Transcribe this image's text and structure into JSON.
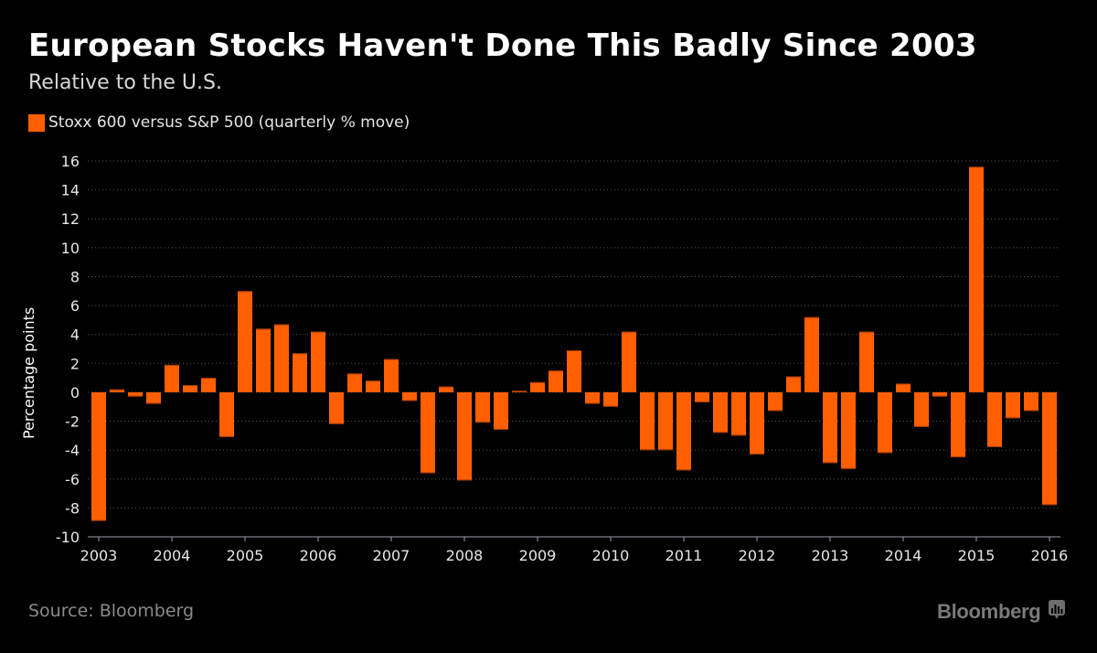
{
  "header": {
    "title": "European Stocks Haven't Done This Badly Since 2003",
    "subtitle": "Relative to the U.S."
  },
  "footer": {
    "source": "Source: Bloomberg",
    "brand": "Bloomberg",
    "brand_icon": "bloomberg-chart-bubble-icon"
  },
  "colors": {
    "bar": "#ff5f00",
    "background": "#000000",
    "grid": "#555555",
    "axis": "#9aa0aa"
  },
  "chart_data": {
    "type": "bar",
    "title": "European Stocks Haven't Done This Badly Since 2003",
    "subtitle": "Relative to the U.S.",
    "xlabel": "",
    "ylabel": "Percentage points",
    "ylim": [
      -10,
      16
    ],
    "yticks": [
      16,
      14,
      12,
      10,
      8,
      6,
      4,
      2,
      0,
      -2,
      -4,
      -6,
      -8,
      -10
    ],
    "xticks": [
      "2003",
      "2004",
      "2005",
      "2006",
      "2007",
      "2008",
      "2009",
      "2010",
      "2011",
      "2012",
      "2013",
      "2014",
      "2015",
      "2016"
    ],
    "grid": true,
    "legend": {
      "position": "top-left",
      "entries": [
        "Stoxx 600 versus S&P 500 (quarterly % move)"
      ]
    },
    "categories": [
      "2003Q1",
      "2003Q2",
      "2003Q3",
      "2003Q4",
      "2004Q1",
      "2004Q2",
      "2004Q3",
      "2004Q4",
      "2005Q1",
      "2005Q2",
      "2005Q3",
      "2005Q4",
      "2006Q1",
      "2006Q2",
      "2006Q3",
      "2006Q4",
      "2007Q1",
      "2007Q2",
      "2007Q3",
      "2007Q4",
      "2008Q1",
      "2008Q2",
      "2008Q3",
      "2008Q4",
      "2009Q1",
      "2009Q2",
      "2009Q3",
      "2009Q4",
      "2010Q1",
      "2010Q2",
      "2010Q3",
      "2010Q4",
      "2011Q1",
      "2011Q2",
      "2011Q3",
      "2011Q4",
      "2012Q1",
      "2012Q2",
      "2012Q3",
      "2012Q4",
      "2013Q1",
      "2013Q2",
      "2013Q3",
      "2013Q4",
      "2014Q1",
      "2014Q2",
      "2014Q3",
      "2014Q4",
      "2015Q1",
      "2015Q2",
      "2015Q3",
      "2015Q4",
      "2016Q1"
    ],
    "series": [
      {
        "name": "Stoxx 600 versus S&P 500 (quarterly % move)",
        "values": [
          -8.9,
          0.2,
          -0.3,
          -0.8,
          1.9,
          0.5,
          1.0,
          -3.1,
          7.0,
          4.4,
          4.7,
          2.7,
          4.2,
          -2.2,
          1.3,
          0.8,
          2.3,
          -0.6,
          -5.6,
          0.4,
          -6.1,
          -2.1,
          -2.6,
          0.1,
          0.7,
          1.5,
          2.9,
          -0.8,
          -1.0,
          4.2,
          -4.0,
          -4.0,
          -5.4,
          -0.7,
          -2.8,
          -3.0,
          -4.3,
          -1.3,
          1.1,
          5.2,
          -4.9,
          -5.3,
          4.2,
          -4.2,
          0.6,
          -2.4,
          -0.3,
          -4.5,
          15.6,
          -3.8,
          -1.8,
          -1.3,
          -7.8
        ]
      }
    ]
  }
}
